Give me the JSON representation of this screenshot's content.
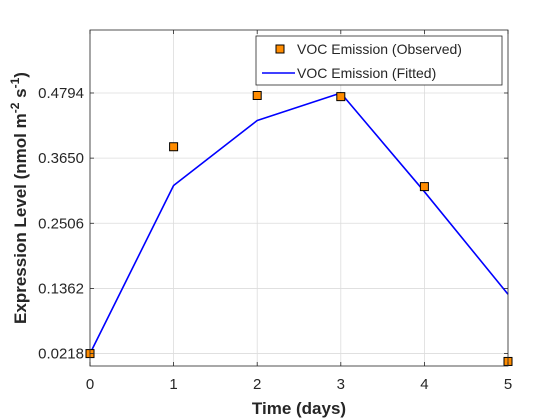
{
  "chart_data": {
    "type": "line",
    "title": "",
    "xlabel": "Time (days)",
    "ylabel": "Expression Level (nmol m",
    "ylabel_sup1": "-2",
    "ylabel_mid": " s",
    "ylabel_sup2": "-1",
    "ylabel_end": ")",
    "x_ticks": [
      0,
      1,
      2,
      3,
      4,
      5
    ],
    "y_ticks": [
      "0.0218",
      "0.1362",
      "0.2506",
      "0.3650",
      "0.4794"
    ],
    "xlim": [
      0,
      5
    ],
    "ylim": [
      0.0,
      0.59
    ],
    "grid": true,
    "legend_position": "top-right",
    "series": [
      {
        "name": "VOC Emission (Observed)",
        "kind": "markers",
        "marker": "square",
        "color": "#ff8c00",
        "edge_color": "#000000",
        "x": [
          0,
          1,
          2,
          3,
          4,
          5
        ],
        "y": [
          0.0218,
          0.385,
          0.475,
          0.473,
          0.315,
          0.008
        ]
      },
      {
        "name": "VOC Emission (Fitted)",
        "kind": "line",
        "color": "#0000ff",
        "x": [
          0,
          1,
          2,
          3,
          4,
          5
        ],
        "y": [
          0.0218,
          0.317,
          0.431,
          0.4794,
          0.306,
          0.126
        ]
      }
    ]
  }
}
